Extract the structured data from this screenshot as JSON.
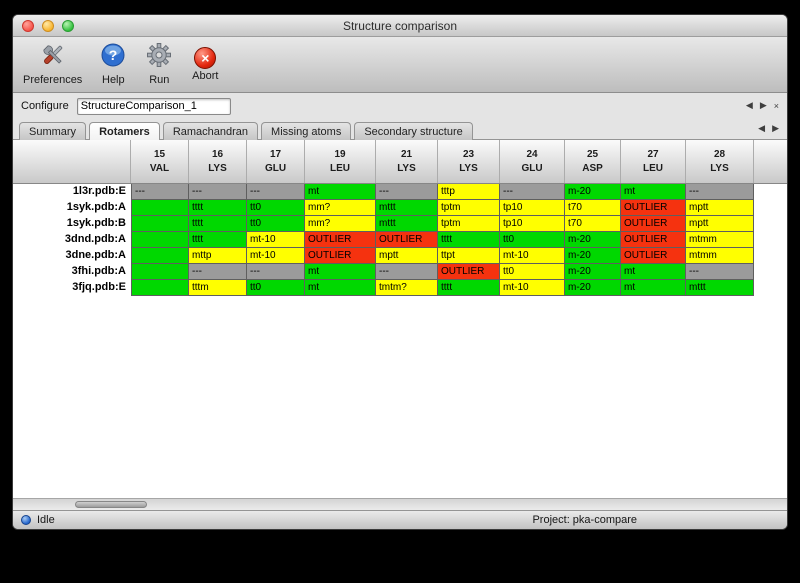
{
  "window": {
    "title": "Structure comparison"
  },
  "toolbar": {
    "buttons": [
      {
        "label": "Preferences"
      },
      {
        "label": "Help"
      },
      {
        "label": "Run"
      },
      {
        "label": "Abort"
      }
    ]
  },
  "configure": {
    "label": "Configure",
    "value": "StructureComparison_1"
  },
  "tab_nav": {
    "prev": "◀",
    "next": "▶",
    "close": "×"
  },
  "tabs": [
    {
      "label": "Summary",
      "active": false
    },
    {
      "label": "Rotamers",
      "active": true
    },
    {
      "label": "Ramachandran",
      "active": false
    },
    {
      "label": "Missing atoms",
      "active": false
    },
    {
      "label": "Secondary structure",
      "active": false
    }
  ],
  "table": {
    "columns": [
      {
        "num": "15",
        "res": "VAL"
      },
      {
        "num": "16",
        "res": "LYS"
      },
      {
        "num": "17",
        "res": "GLU"
      },
      {
        "num": "19",
        "res": "LEU"
      },
      {
        "num": "21",
        "res": "LYS"
      },
      {
        "num": "23",
        "res": "LYS"
      },
      {
        "num": "24",
        "res": "GLU"
      },
      {
        "num": "25",
        "res": "ASP"
      },
      {
        "num": "27",
        "res": "LEU"
      },
      {
        "num": "28",
        "res": "LYS"
      }
    ],
    "rows": [
      {
        "label": "1l3r.pdb:E",
        "cells": [
          {
            "t": "---",
            "c": "gray"
          },
          {
            "t": "---",
            "c": "gray"
          },
          {
            "t": "---",
            "c": "gray"
          },
          {
            "t": "mt",
            "c": "green"
          },
          {
            "t": "---",
            "c": "gray"
          },
          {
            "t": "tttp",
            "c": "yellow"
          },
          {
            "t": "---",
            "c": "gray"
          },
          {
            "t": "m-20",
            "c": "green"
          },
          {
            "t": "mt",
            "c": "green"
          },
          {
            "t": "---",
            "c": "gray"
          }
        ]
      },
      {
        "label": "1syk.pdb:A",
        "cells": [
          {
            "t": "",
            "c": "green"
          },
          {
            "t": "tttt",
            "c": "green"
          },
          {
            "t": "tt0",
            "c": "green"
          },
          {
            "t": "mm?",
            "c": "yellow"
          },
          {
            "t": "mttt",
            "c": "green"
          },
          {
            "t": "tptm",
            "c": "yellow"
          },
          {
            "t": "tp10",
            "c": "yellow"
          },
          {
            "t": "t70",
            "c": "yellow"
          },
          {
            "t": "OUTLIER",
            "c": "red"
          },
          {
            "t": "mptt",
            "c": "yellow"
          }
        ]
      },
      {
        "label": "1syk.pdb:B",
        "cells": [
          {
            "t": "",
            "c": "green"
          },
          {
            "t": "tttt",
            "c": "green"
          },
          {
            "t": "tt0",
            "c": "green"
          },
          {
            "t": "mm?",
            "c": "yellow"
          },
          {
            "t": "mttt",
            "c": "green"
          },
          {
            "t": "tptm",
            "c": "yellow"
          },
          {
            "t": "tp10",
            "c": "yellow"
          },
          {
            "t": "t70",
            "c": "yellow"
          },
          {
            "t": "OUTLIER",
            "c": "red"
          },
          {
            "t": "mptt",
            "c": "yellow"
          }
        ]
      },
      {
        "label": "3dnd.pdb:A",
        "cells": [
          {
            "t": "",
            "c": "green"
          },
          {
            "t": "tttt",
            "c": "green"
          },
          {
            "t": "mt-10",
            "c": "yellow"
          },
          {
            "t": "OUTLIER",
            "c": "red"
          },
          {
            "t": "OUTLIER",
            "c": "red"
          },
          {
            "t": "tttt",
            "c": "green"
          },
          {
            "t": "tt0",
            "c": "green"
          },
          {
            "t": "m-20",
            "c": "green"
          },
          {
            "t": "OUTLIER",
            "c": "red"
          },
          {
            "t": "mtmm",
            "c": "yellow"
          }
        ]
      },
      {
        "label": "3dne.pdb:A",
        "cells": [
          {
            "t": "",
            "c": "green"
          },
          {
            "t": "mttp",
            "c": "yellow"
          },
          {
            "t": "mt-10",
            "c": "yellow"
          },
          {
            "t": "OUTLIER",
            "c": "red"
          },
          {
            "t": "mptt",
            "c": "yellow"
          },
          {
            "t": "ttpt",
            "c": "yellow"
          },
          {
            "t": "mt-10",
            "c": "yellow"
          },
          {
            "t": "m-20",
            "c": "green"
          },
          {
            "t": "OUTLIER",
            "c": "red"
          },
          {
            "t": "mtmm",
            "c": "yellow"
          }
        ]
      },
      {
        "label": "3fhi.pdb:A",
        "cells": [
          {
            "t": "",
            "c": "green"
          },
          {
            "t": "---",
            "c": "gray"
          },
          {
            "t": "---",
            "c": "gray"
          },
          {
            "t": "mt",
            "c": "green"
          },
          {
            "t": "---",
            "c": "gray"
          },
          {
            "t": "OUTLIER",
            "c": "red"
          },
          {
            "t": "tt0",
            "c": "yellow"
          },
          {
            "t": "m-20",
            "c": "green"
          },
          {
            "t": "mt",
            "c": "green"
          },
          {
            "t": "---",
            "c": "gray"
          }
        ]
      },
      {
        "label": "3fjq.pdb:E",
        "cells": [
          {
            "t": "",
            "c": "green"
          },
          {
            "t": "tttm",
            "c": "yellow"
          },
          {
            "t": "tt0",
            "c": "green"
          },
          {
            "t": "mt",
            "c": "green"
          },
          {
            "t": "tmtm?",
            "c": "yellow"
          },
          {
            "t": "tttt",
            "c": "green"
          },
          {
            "t": "mt-10",
            "c": "yellow"
          },
          {
            "t": "m-20",
            "c": "green"
          },
          {
            "t": "mt",
            "c": "green"
          },
          {
            "t": "mttt",
            "c": "green"
          }
        ]
      }
    ]
  },
  "colors": {
    "green": "#00d800",
    "yellow": "#ffff00",
    "red": "#f5320f",
    "gray": "#9b9b9b"
  },
  "statusbar": {
    "status": "Idle",
    "project": "Project: pka-compare"
  }
}
